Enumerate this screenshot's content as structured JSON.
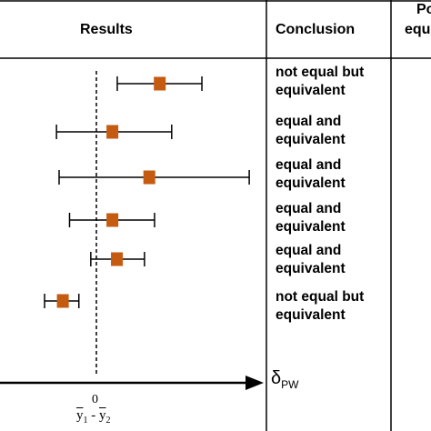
{
  "table": {
    "headers": {
      "results": "Results",
      "conclusion": "Conclusion",
      "partial_top": "Po",
      "partial_bottom": "equ"
    }
  },
  "chart_data": {
    "type": "forest",
    "zero_label": "0",
    "x_axis_label": "ȳ1 - ȳ2",
    "arrow_label": "δPW",
    "rows": [
      {
        "estimate": 1.7,
        "ci_low": 0.56,
        "ci_high": 2.83,
        "conclusion": [
          "not equal but",
          "equivalent"
        ]
      },
      {
        "estimate": 0.43,
        "ci_low": -1.07,
        "ci_high": 2.02,
        "conclusion": [
          "equal and",
          "equivalent"
        ]
      },
      {
        "estimate": 1.42,
        "ci_low": -1.0,
        "ci_high": 4.1,
        "conclusion": [
          "equal and",
          "equivalent"
        ]
      },
      {
        "estimate": 0.43,
        "ci_low": -0.72,
        "ci_high": 1.56,
        "conclusion": [
          "equal and",
          "equivalent"
        ]
      },
      {
        "estimate": 0.55,
        "ci_low": -0.15,
        "ci_high": 1.29,
        "conclusion": [
          "equal and",
          "equivalent"
        ]
      },
      {
        "estimate": -0.9,
        "ci_low": -1.39,
        "ci_high": -0.47,
        "conclusion": [
          "not equal but",
          "equivalent"
        ]
      }
    ],
    "reference_line": 0,
    "colors": {
      "marker": "#c55a11",
      "lines": "#000000"
    }
  }
}
